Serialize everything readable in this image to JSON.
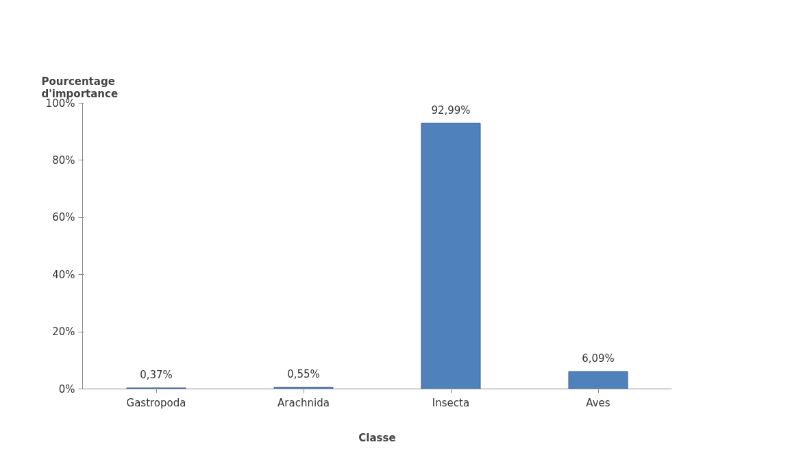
{
  "chart_data": {
    "type": "bar",
    "xlabel": "Classe",
    "ylabel": "Pourcentage\nd'importance",
    "categories": [
      "Gastropoda",
      "Arachnida",
      "Insecta",
      "Aves"
    ],
    "values": [
      0.37,
      0.55,
      92.99,
      6.09
    ],
    "value_labels": [
      "0,37%",
      "0,55%",
      "92,99%",
      "6,09%"
    ],
    "color": "#4f81bd",
    "ylim": [
      0,
      100
    ],
    "yticks": [
      {
        "value": 0,
        "label": "0%"
      },
      {
        "value": 20,
        "label": "20%"
      },
      {
        "value": 40,
        "label": "40%"
      },
      {
        "value": 60,
        "label": "60%"
      },
      {
        "value": 80,
        "label": "80%"
      },
      {
        "value": 100,
        "label": "100%"
      }
    ],
    "grid": false
  }
}
